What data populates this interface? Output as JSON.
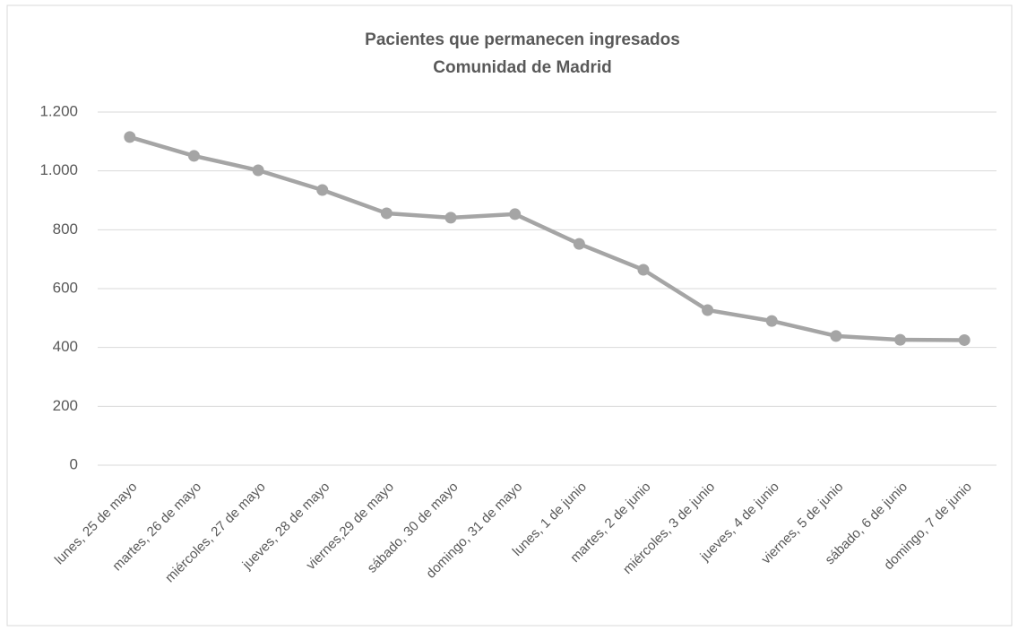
{
  "chart_data": {
    "type": "line",
    "title": "Pacientes que permanecen ingresados",
    "subtitle": "Comunidad de Madrid",
    "categories": [
      "lunes, 25 de mayo",
      "martes, 26 de mayo",
      "miércoles, 27 de mayo",
      "jueves, 28 de mayo",
      "viernes,29 de mayo",
      "sábado, 30 de mayo",
      "domingo, 31 de mayo",
      "lunes, 1 de junio",
      "martes, 2 de junio",
      "miércoles, 3 de junio",
      "jueves, 4 de junio",
      "viernes, 5 de junio",
      "sábado, 6 de junio",
      "domingo, 7 de junio"
    ],
    "values": [
      1115,
      1051,
      1002,
      935,
      856,
      841,
      853,
      752,
      664,
      527,
      490,
      439,
      426,
      425
    ],
    "color": "#a5a5a5",
    "ylim": [
      0,
      1200
    ],
    "yticks": [
      0,
      200,
      400,
      600,
      800,
      {
        "value": 1000,
        "label": "1.000"
      },
      {
        "value": 1200,
        "label": "1.200"
      }
    ],
    "grid": true
  }
}
